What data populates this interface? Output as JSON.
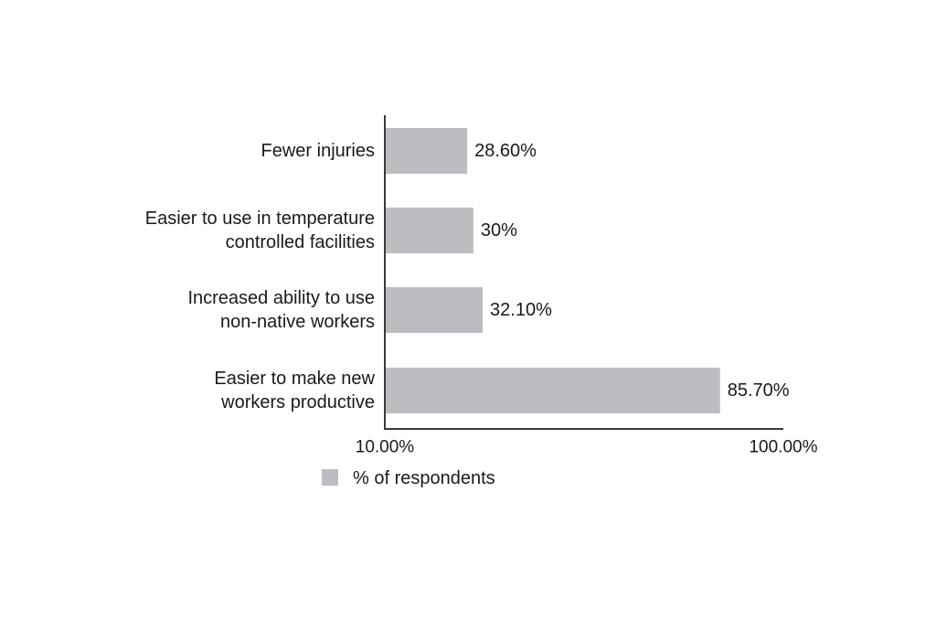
{
  "chart_data": {
    "type": "bar",
    "orientation": "horizontal",
    "categories": [
      [
        "Fewer injuries"
      ],
      [
        "Easier to use in temperature",
        "controlled facilities"
      ],
      [
        "Increased ability to use",
        "non-native workers"
      ],
      [
        "Easier to make new",
        "workers productive"
      ]
    ],
    "values": [
      28.6,
      30,
      32.1,
      85.7
    ],
    "value_labels": [
      "28.60%",
      "30%",
      "32.10%",
      "85.70%"
    ],
    "xlim": [
      10,
      100
    ],
    "x_ticks": [
      10,
      100
    ],
    "x_tick_labels": [
      "10.00%",
      "100.00%"
    ],
    "series": [
      {
        "name": "% of respondents",
        "values": [
          28.6,
          30,
          32.1,
          85.7
        ]
      }
    ],
    "bar_color": "#bcbdc0",
    "axis_color": "#3a3a3a",
    "legend_position": "bottom-left",
    "grid": false,
    "title": "",
    "xlabel": "",
    "ylabel": ""
  }
}
